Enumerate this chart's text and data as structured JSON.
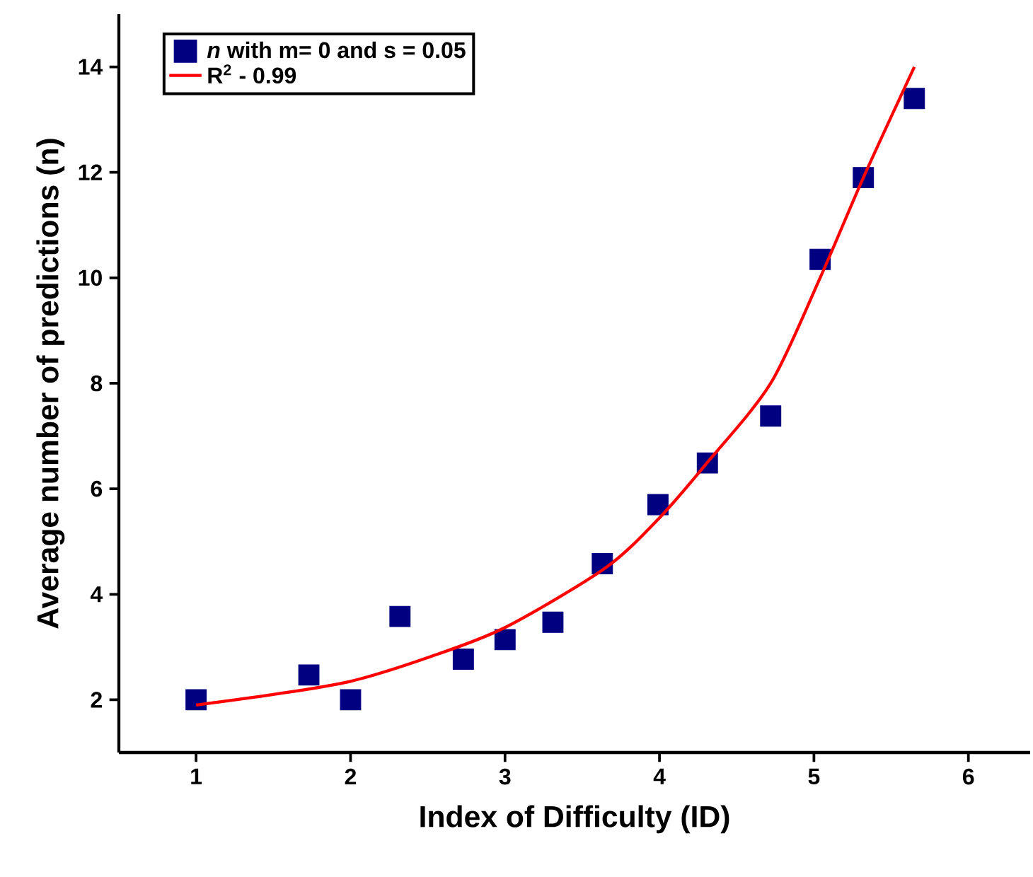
{
  "chart_data": {
    "type": "scatter",
    "xlabel": "Index of Difficulty (ID)",
    "ylabel": "Average number of predictions (n)",
    "xlim": [
      0.5,
      6.4
    ],
    "ylim": [
      1,
      15
    ],
    "xticks": [
      1,
      2,
      3,
      4,
      5,
      6
    ],
    "yticks": [
      2,
      4,
      6,
      8,
      10,
      12,
      14
    ],
    "grid": false,
    "legend": "top left",
    "marker": "square",
    "series": [
      {
        "name": "*n* with m= 0 and s = 0.05",
        "color": "#000080",
        "x": [
          1.0,
          1.73,
          2.0,
          2.32,
          2.73,
          3.0,
          3.31,
          3.63,
          3.99,
          4.31,
          4.72,
          5.04,
          5.32,
          5.65
        ],
        "values": [
          2.0,
          2.47,
          2.0,
          3.58,
          2.77,
          3.14,
          3.47,
          4.58,
          5.7,
          6.49,
          7.38,
          10.35,
          11.9,
          13.4
        ]
      },
      {
        "name": "R$^{2}$ - 0.99",
        "type": "line",
        "color": "#ff0000",
        "marker": "none",
        "line_style": "solid",
        "x": [
          1.0,
          1.5,
          2.0,
          2.5,
          3.0,
          3.65,
          4.0,
          4.31,
          4.72,
          5.04,
          5.32,
          5.65
        ],
        "values": [
          1.9,
          2.1,
          2.35,
          2.8,
          3.37,
          4.5,
          5.45,
          6.5,
          8.0,
          10.0,
          11.9,
          14.0
        ]
      }
    ]
  }
}
